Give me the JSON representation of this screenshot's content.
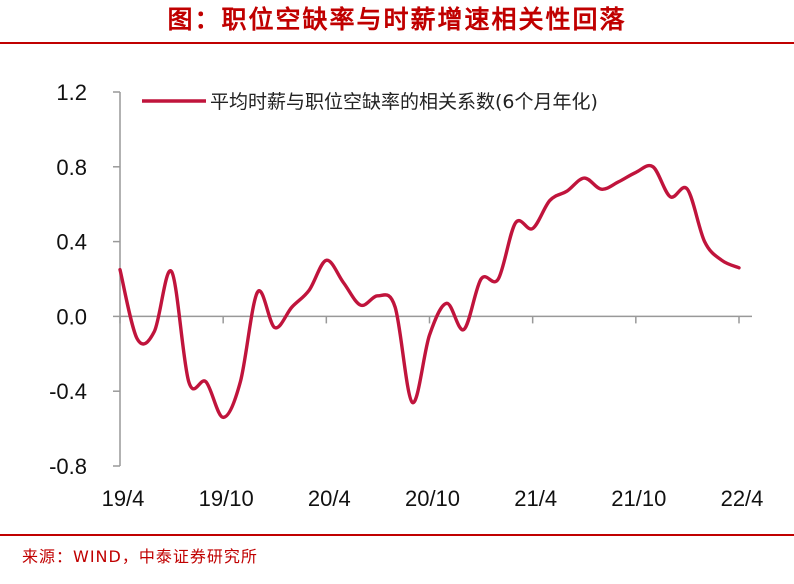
{
  "header": {
    "title": "图：职位空缺率与时薪增速相关性回落"
  },
  "footer": {
    "source": "来源：WIND，中泰证券研究所"
  },
  "colors": {
    "accent": "#C00000",
    "series": "#C0143C",
    "axis": "#999999"
  },
  "chart_data": {
    "type": "line",
    "title": "图：职位空缺率与时薪增速相关性回落",
    "xlabel": "",
    "ylabel": "",
    "ylim": [
      -0.8,
      1.2
    ],
    "yticks": [
      "1.2",
      "0.8",
      "0.4",
      "0.0",
      "-0.4",
      "-0.8"
    ],
    "ytick_values": [
      1.2,
      0.8,
      0.4,
      0.0,
      -0.4,
      -0.8
    ],
    "xtick_labels": [
      "19/4",
      "19/10",
      "20/4",
      "20/10",
      "21/4",
      "21/10",
      "22/4"
    ],
    "grid": false,
    "legend_position": "top",
    "series": [
      {
        "name": "平均时薪与职位空缺率的相关系数(6个月年化)",
        "x": [
          "2019-04",
          "2019-05",
          "2019-06",
          "2019-07",
          "2019-08",
          "2019-09",
          "2019-10",
          "2019-11",
          "2019-12",
          "2020-01",
          "2020-02",
          "2020-03",
          "2020-04",
          "2020-05",
          "2020-06",
          "2020-07",
          "2020-08",
          "2020-09",
          "2020-10",
          "2020-11",
          "2020-12",
          "2021-01",
          "2021-02",
          "2021-03",
          "2021-04",
          "2021-05",
          "2021-06",
          "2021-07",
          "2021-08",
          "2021-09",
          "2021-10",
          "2021-11",
          "2021-12",
          "2022-01",
          "2022-02",
          "2022-03",
          "2022-04"
        ],
        "values": [
          0.25,
          -0.12,
          -0.08,
          0.24,
          -0.35,
          -0.35,
          -0.54,
          -0.35,
          0.13,
          -0.06,
          0.05,
          0.14,
          0.3,
          0.18,
          0.06,
          0.11,
          0.05,
          -0.46,
          -0.1,
          0.07,
          -0.07,
          0.2,
          0.2,
          0.5,
          0.47,
          0.62,
          0.67,
          0.74,
          0.68,
          0.72,
          0.77,
          0.8,
          0.64,
          0.68,
          0.4,
          0.3,
          0.26
        ]
      }
    ]
  }
}
